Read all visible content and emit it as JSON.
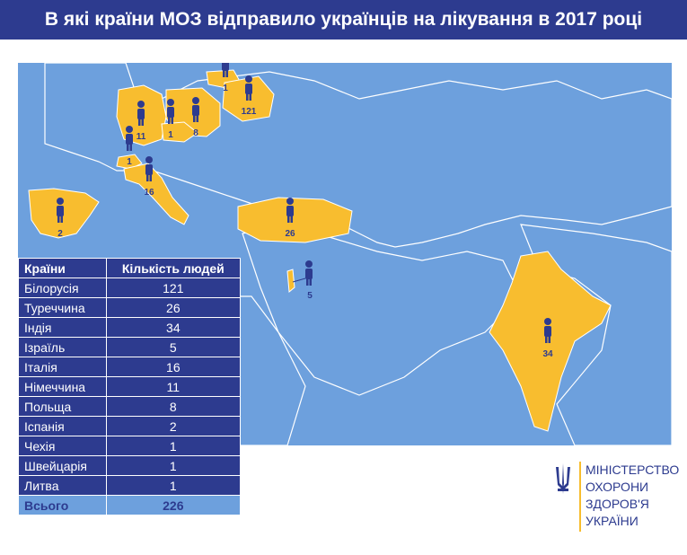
{
  "title": "В які країни МОЗ відправило українців на лікування в 2017 році",
  "colors": {
    "sea": "#6da0dd",
    "land": "#ffffff",
    "highlight": "#f8bd2f",
    "navy": "#2d3b8f"
  },
  "table": {
    "headers": [
      "Країни",
      "Кількість людей"
    ],
    "rows": [
      {
        "country": "Білорусія",
        "count": "121"
      },
      {
        "country": "Туреччина",
        "count": "26"
      },
      {
        "country": "Індія",
        "count": "34"
      },
      {
        "country": "Ізраїль",
        "count": "5"
      },
      {
        "country": "Італія",
        "count": "16"
      },
      {
        "country": "Німеччина",
        "count": "11"
      },
      {
        "country": "Польща",
        "count": "8"
      },
      {
        "country": "Іспанія",
        "count": "2"
      },
      {
        "country": "Чехія",
        "count": "1"
      },
      {
        "country": "Швейцарія",
        "count": "1"
      },
      {
        "country": "Литва",
        "count": "1"
      }
    ],
    "total_label": "Всього",
    "total_value": "226"
  },
  "markers": [
    {
      "country": "Литва",
      "label": "1"
    },
    {
      "country": "Білорусія",
      "label": "121"
    },
    {
      "country": "Німеччина",
      "label": "11"
    },
    {
      "country": "Чехія",
      "label": "1"
    },
    {
      "country": "Польща",
      "label": "8"
    },
    {
      "country": "Швейцарія",
      "label": "1"
    },
    {
      "country": "Італія",
      "label": "16"
    },
    {
      "country": "Іспанія",
      "label": "2"
    },
    {
      "country": "Туреччина",
      "label": "26"
    },
    {
      "country": "Ізраїль",
      "label": "5"
    },
    {
      "country": "Індія",
      "label": "34"
    }
  ],
  "ministry": {
    "lines": [
      "МІНІСТЕРСТВО",
      "ОХОРОНИ",
      "ЗДОРОВ'Я",
      "УКРАЇНИ"
    ]
  }
}
